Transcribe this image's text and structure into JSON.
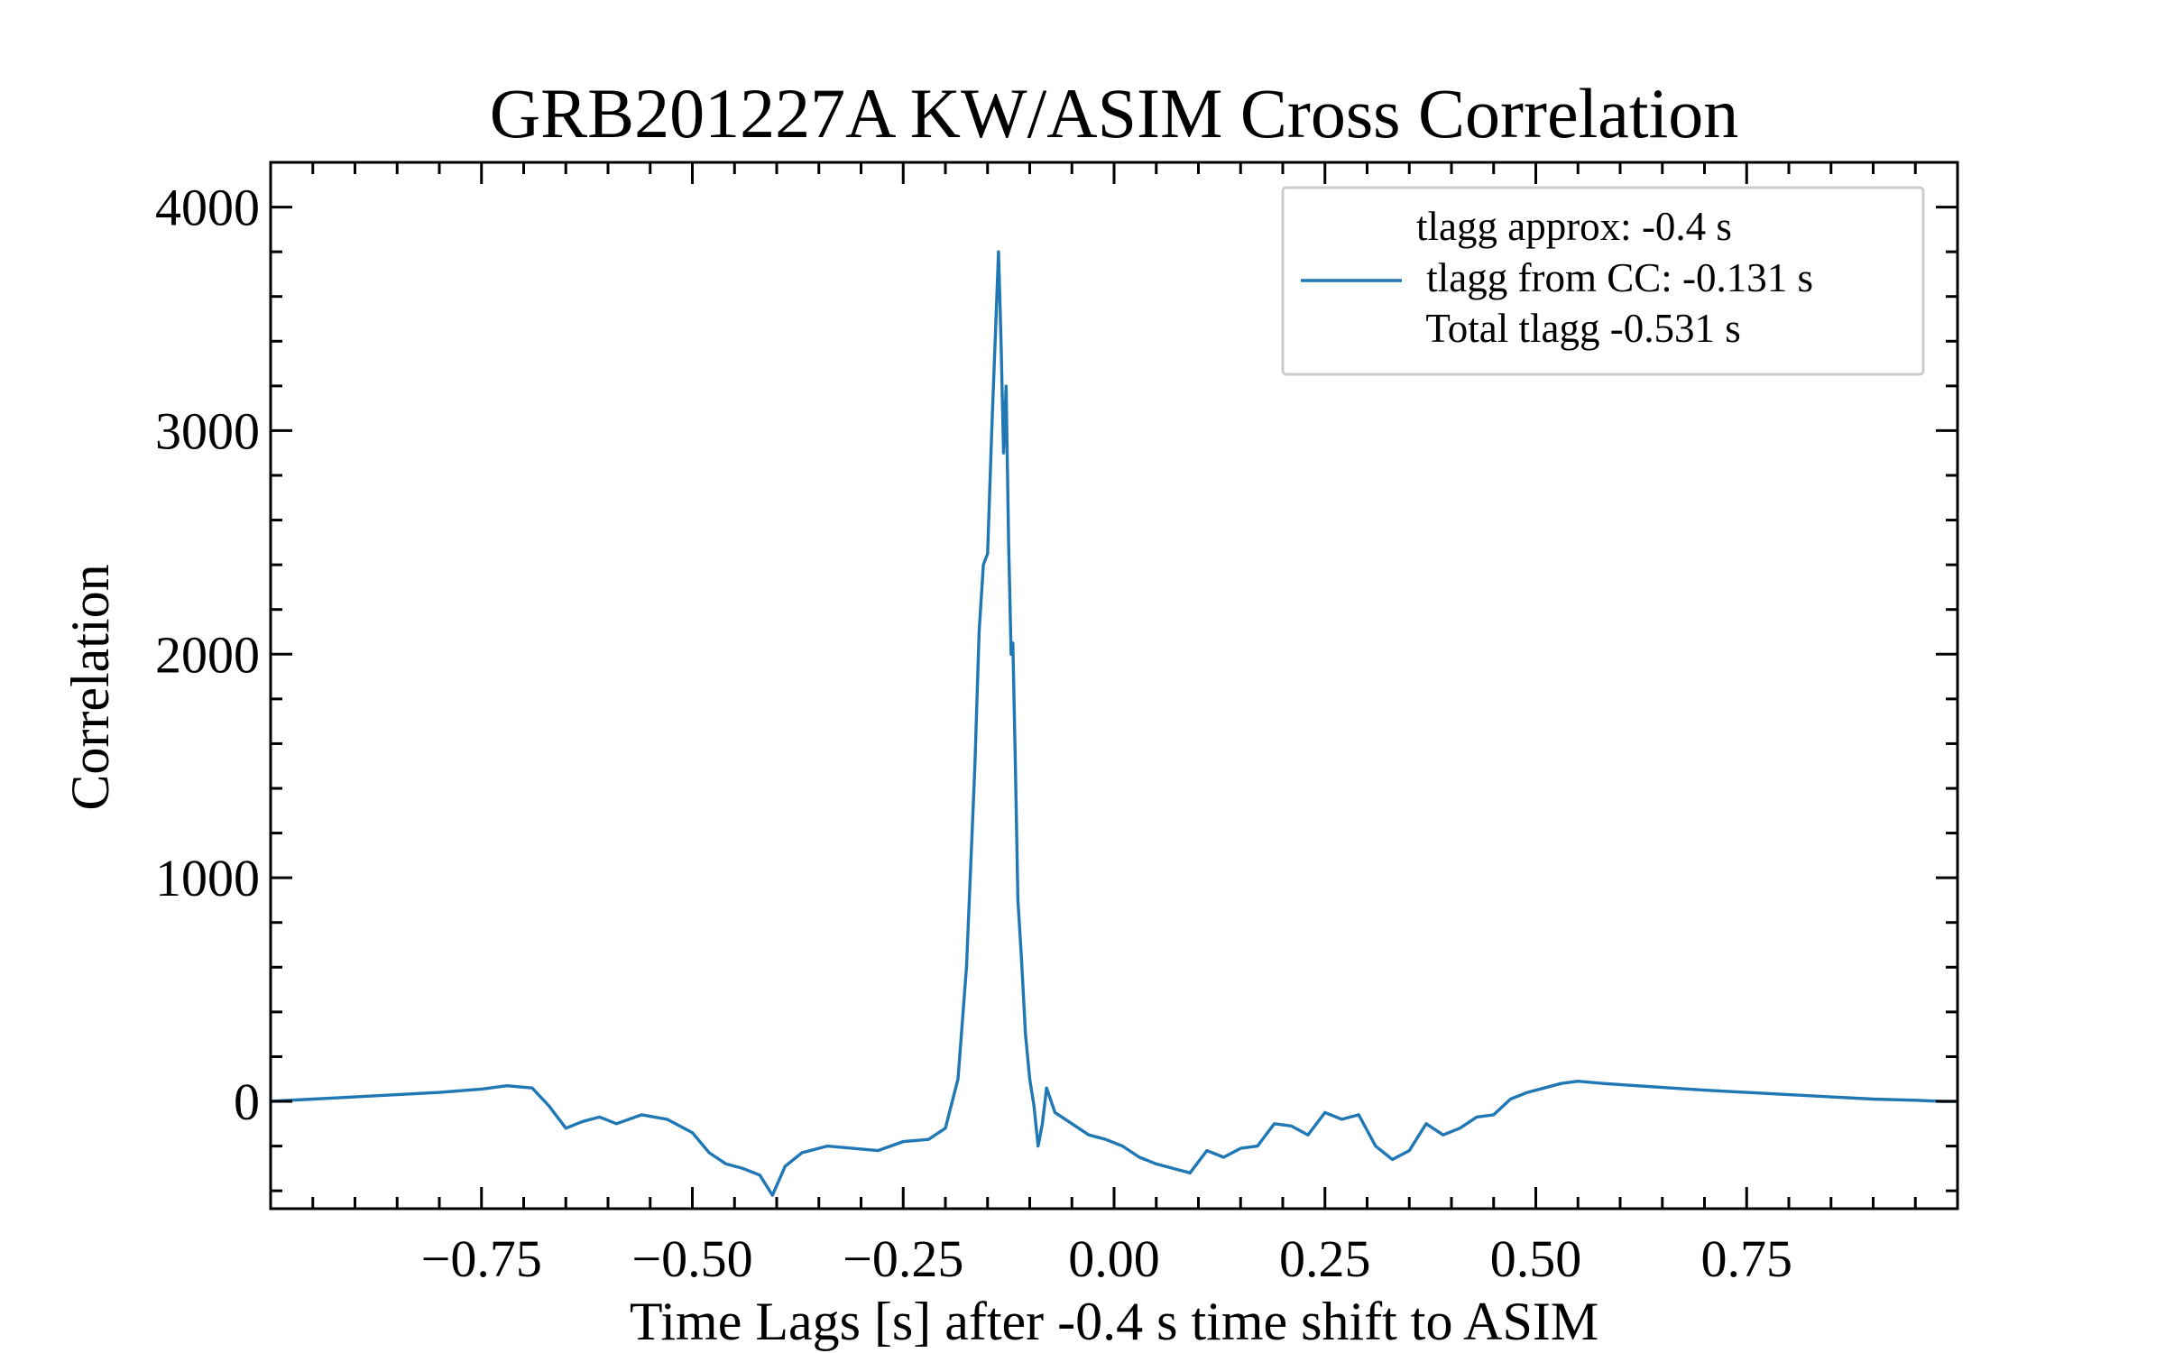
{
  "chart_data": {
    "type": "line",
    "title": "GRB201227A KW/ASIM Cross Correlation",
    "xlabel": "Time Lags [s] after -0.4 s time shift to ASIM",
    "ylabel": "Correlation",
    "xlim": [
      -1.0,
      1.0
    ],
    "ylim": [
      -480,
      4200
    ],
    "x_ticks": [
      -0.75,
      -0.5,
      -0.25,
      0.0,
      0.25,
      0.5,
      0.75
    ],
    "x_tick_labels": [
      "−0.75",
      "−0.50",
      "−0.25",
      "0.00",
      "0.25",
      "0.50",
      "0.75"
    ],
    "y_ticks": [
      0,
      1000,
      2000,
      3000,
      4000
    ],
    "y_tick_labels": [
      "0",
      "1000",
      "2000",
      "3000",
      "4000"
    ],
    "grid": false,
    "legend_position": "top-right",
    "legend": {
      "line1": "tlagg approx: -0.4 s",
      "line2": " tlagg from CC: -0.131 s",
      "line3": " Total tlagg -0.531 s"
    },
    "series": [
      {
        "color": "#1f77b4",
        "x": [
          -1.0,
          -0.95,
          -0.9,
          -0.85,
          -0.8,
          -0.75,
          -0.72,
          -0.69,
          -0.67,
          -0.65,
          -0.63,
          -0.61,
          -0.59,
          -0.56,
          -0.53,
          -0.5,
          -0.48,
          -0.46,
          -0.44,
          -0.42,
          -0.405,
          -0.39,
          -0.37,
          -0.34,
          -0.31,
          -0.28,
          -0.25,
          -0.22,
          -0.2,
          -0.185,
          -0.175,
          -0.165,
          -0.16,
          -0.155,
          -0.15,
          -0.145,
          -0.14,
          -0.137,
          -0.134,
          -0.131,
          -0.128,
          -0.125,
          -0.122,
          -0.12,
          -0.117,
          -0.114,
          -0.11,
          -0.105,
          -0.1,
          -0.095,
          -0.09,
          -0.085,
          -0.08,
          -0.07,
          -0.05,
          -0.03,
          -0.01,
          0.01,
          0.03,
          0.05,
          0.07,
          0.09,
          0.11,
          0.13,
          0.15,
          0.17,
          0.19,
          0.21,
          0.23,
          0.25,
          0.27,
          0.29,
          0.31,
          0.33,
          0.35,
          0.37,
          0.39,
          0.41,
          0.43,
          0.45,
          0.47,
          0.49,
          0.51,
          0.53,
          0.55,
          0.58,
          0.62,
          0.66,
          0.7,
          0.75,
          0.8,
          0.85,
          0.9,
          0.95,
          0.98,
          1.0
        ],
        "y": [
          0,
          10,
          20,
          30,
          40,
          55,
          70,
          60,
          -20,
          -120,
          -90,
          -70,
          -100,
          -60,
          -80,
          -140,
          -230,
          -280,
          -300,
          -330,
          -420,
          -290,
          -230,
          -200,
          -210,
          -220,
          -180,
          -170,
          -120,
          100,
          600,
          1500,
          2100,
          2400,
          2450,
          3000,
          3500,
          3800,
          3400,
          2900,
          3200,
          2500,
          2000,
          2050,
          1500,
          900,
          650,
          300,
          100,
          -20,
          -200,
          -100,
          60,
          -50,
          -100,
          -150,
          -170,
          -200,
          -250,
          -280,
          -300,
          -320,
          -220,
          -250,
          -210,
          -200,
          -100,
          -110,
          -150,
          -50,
          -80,
          -60,
          -200,
          -260,
          -220,
          -100,
          -150,
          -120,
          -70,
          -60,
          10,
          40,
          60,
          80,
          90,
          80,
          70,
          60,
          50,
          40,
          30,
          20,
          10,
          5,
          0,
          0
        ]
      }
    ]
  }
}
